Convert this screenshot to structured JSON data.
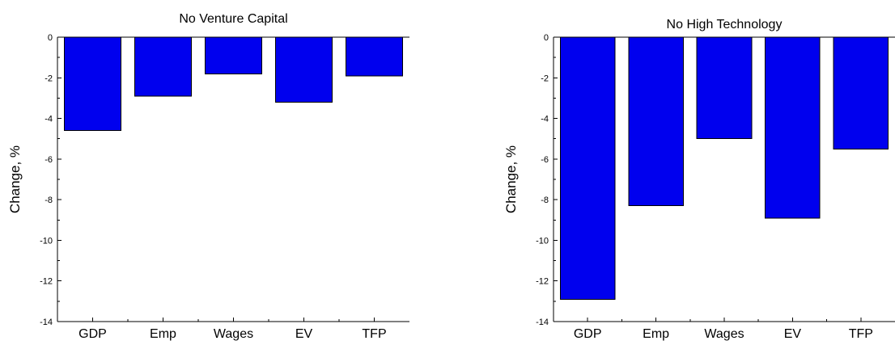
{
  "chart_data": [
    {
      "type": "bar",
      "title": "No Venture Capital",
      "ylabel": "Change, %",
      "xlabel": "",
      "categories": [
        "GDP",
        "Emp",
        "Wages",
        "EV",
        "TFP"
      ],
      "values": [
        -4.6,
        -2.9,
        -1.8,
        -3.2,
        -1.9
      ],
      "ylim": [
        -14,
        0
      ],
      "yticks": [
        0,
        -2,
        -4,
        -6,
        -8,
        -10,
        -12,
        -14
      ],
      "tick_labels": [
        "0",
        "-2",
        "-4",
        "-6",
        "-8",
        "-10",
        "-12",
        "-14"
      ],
      "grid": false,
      "legend": false
    },
    {
      "type": "bar",
      "title": "No High Technology",
      "ylabel": "Change, %",
      "xlabel": "",
      "categories": [
        "GDP",
        "Emp",
        "Wages",
        "EV",
        "TFP"
      ],
      "values": [
        -12.9,
        -8.3,
        -5.0,
        -8.9,
        -5.5
      ],
      "ylim": [
        -14,
        0
      ],
      "yticks": [
        0,
        -2,
        -4,
        -6,
        -8,
        -10,
        -12,
        -14
      ],
      "tick_labels": [
        "0",
        "-2",
        "-4",
        "-6",
        "-8",
        "-10",
        "-12",
        "-14"
      ],
      "grid": false,
      "legend": false
    }
  ],
  "colors": {
    "bar_fill": "#0000ee",
    "axis": "#000000"
  }
}
